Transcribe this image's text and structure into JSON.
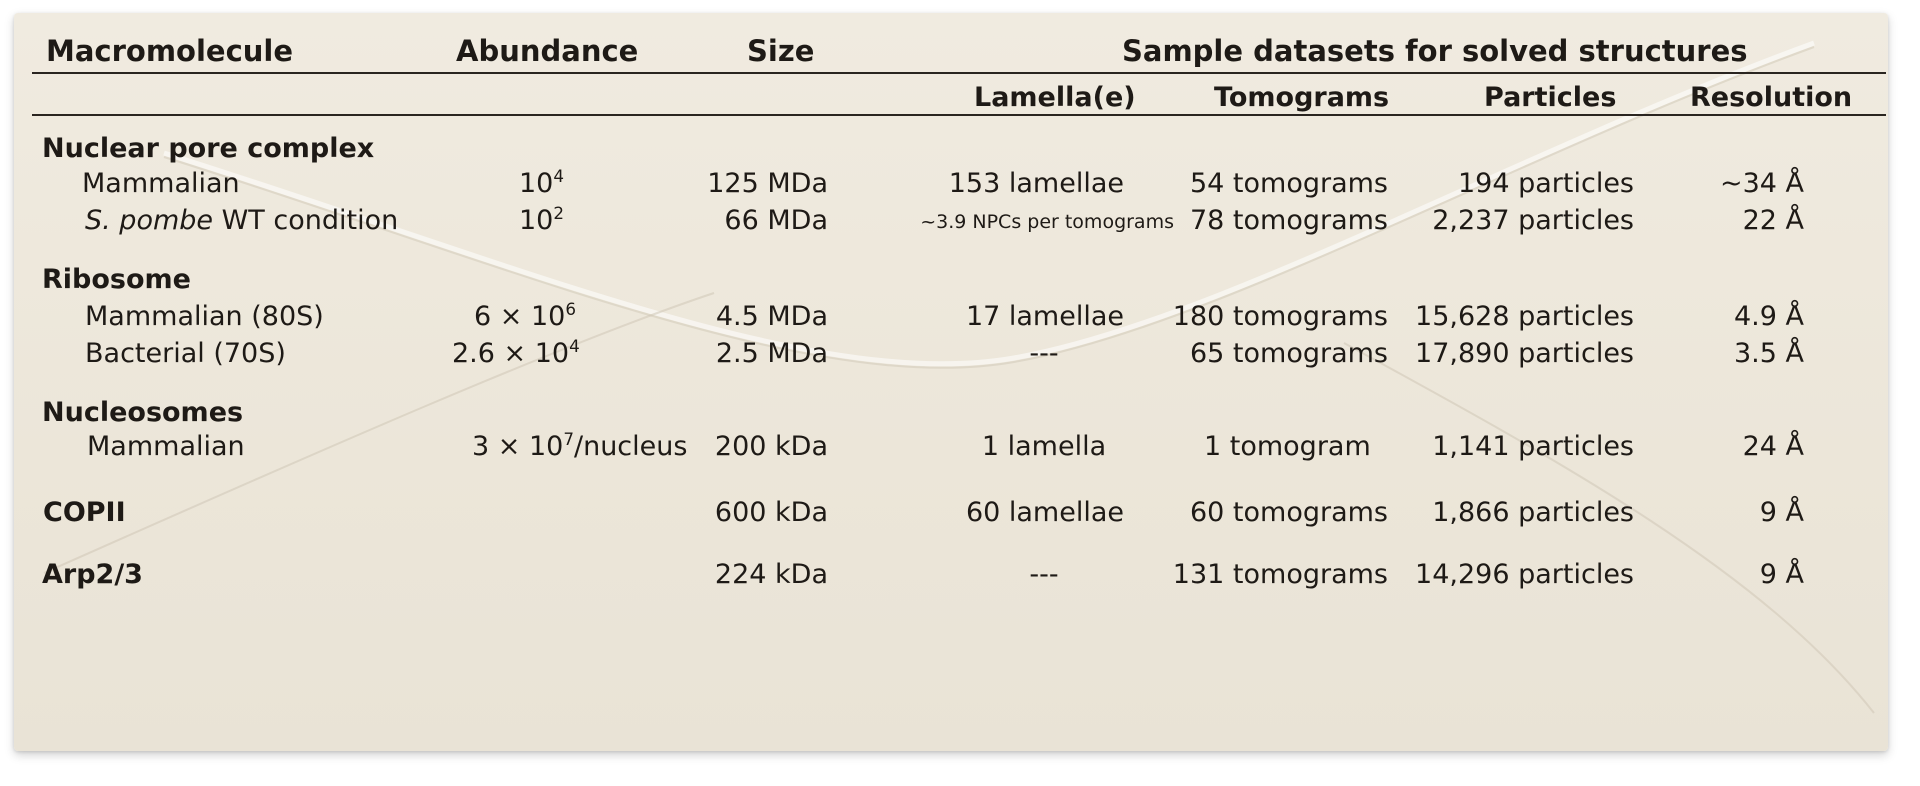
{
  "headers": {
    "macromolecule": "Macromolecule",
    "abundance": "Abundance",
    "size": "Size",
    "sample_datasets": "Sample datasets for solved structures",
    "lamellae": "Lamella(e)",
    "tomograms": "Tomograms",
    "particles": "Particles",
    "resolution": "Resolution"
  },
  "groups": {
    "npc": {
      "name": "Nuclear pore complex",
      "rows": [
        {
          "name": "Mammalian",
          "ab_base": "10",
          "ab_exp": "4",
          "ab_suffix": "",
          "size": "125 MDa",
          "lamellae": "153 lamellae",
          "tomograms": "54 tomograms",
          "particles": "194 particles",
          "resolution": "~34 Å"
        },
        {
          "name_italic": "S. pombe",
          "name_rest": " WT condition",
          "ab_base": "10",
          "ab_exp": "2",
          "ab_suffix": "",
          "size": "66 MDa",
          "lamellae": "~3.9 NPCs per tomograms",
          "tomograms": "78 tomograms",
          "particles": "2,237 particles",
          "resolution": "22 Å"
        }
      ]
    },
    "ribosome": {
      "name": "Ribosome",
      "rows": [
        {
          "name": "Mammalian (80S)",
          "ab_base": "6 × 10",
          "ab_exp": "6",
          "ab_suffix": "",
          "size": "4.5 MDa",
          "lamellae": "17 lamellae",
          "tomograms": "180 tomograms",
          "particles": "15,628 particles",
          "resolution": "4.9 Å"
        },
        {
          "name": "Bacterial (70S)",
          "ab_base": "2.6 × 10",
          "ab_exp": "4",
          "ab_suffix": "",
          "size": "2.5 MDa",
          "lamellae": "---",
          "tomograms": "65 tomograms",
          "particles": "17,890 particles",
          "resolution": "3.5 Å"
        }
      ]
    },
    "nucleosomes": {
      "name": "Nucleosomes",
      "rows": [
        {
          "name": "Mammalian",
          "ab_base": "3 × 10",
          "ab_exp": "7",
          "ab_suffix": "/nucleus",
          "size": "200 kDa",
          "lamellae": "1 lamella",
          "tomograms": "1 tomogram",
          "particles": "1,141 particles",
          "resolution": "24 Å"
        }
      ]
    },
    "copii": {
      "name": "COPII",
      "size": "600 kDa",
      "lamellae": "60 lamellae",
      "tomograms": "60 tomograms",
      "particles": "1,866 particles",
      "resolution": "9 Å"
    },
    "arp": {
      "name": "Arp2/3",
      "size": "224 kDa",
      "lamellae": "---",
      "tomograms": "131 tomograms",
      "particles": "14,296 particles",
      "resolution": "9 Å"
    }
  }
}
